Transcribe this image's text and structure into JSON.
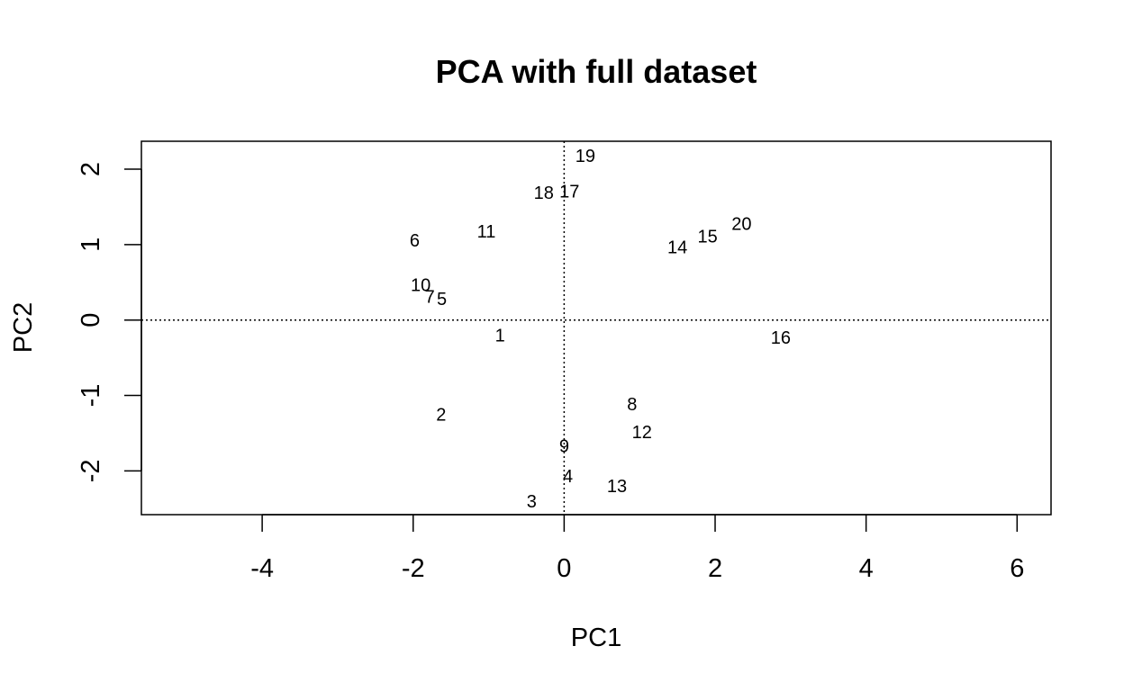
{
  "chart_data": {
    "type": "scatter",
    "title": "PCA with full dataset",
    "xlabel": "PC1",
    "ylabel": "PC2",
    "xlim": [
      -5.6,
      6.45
    ],
    "ylim": [
      -2.58,
      2.37
    ],
    "x_ticks": [
      -4,
      -2,
      0,
      2,
      4,
      6
    ],
    "y_ticks": [
      -2,
      -1,
      0,
      1,
      2
    ],
    "x_tick_labels": [
      "-4",
      "-2",
      "0",
      "2",
      "4",
      "6"
    ],
    "y_tick_labels": [
      "-2",
      "-1",
      "0",
      "1",
      "2"
    ],
    "reference_lines": {
      "x": 0,
      "y": 0,
      "style": "dotted"
    },
    "grid": false,
    "point_style": "text-labels",
    "points": [
      {
        "label": "1",
        "x": -0.85,
        "y": -0.2
      },
      {
        "label": "2",
        "x": -1.63,
        "y": -1.25
      },
      {
        "label": "3",
        "x": -0.43,
        "y": -2.4
      },
      {
        "label": "4",
        "x": 0.05,
        "y": -2.07
      },
      {
        "label": "5",
        "x": -1.62,
        "y": 0.28
      },
      {
        "label": "6",
        "x": -1.98,
        "y": 1.06
      },
      {
        "label": "7",
        "x": -1.78,
        "y": 0.31
      },
      {
        "label": "8",
        "x": 0.9,
        "y": -1.11
      },
      {
        "label": "9",
        "x": 0.0,
        "y": -1.67
      },
      {
        "label": "10",
        "x": -1.9,
        "y": 0.47
      },
      {
        "label": "11",
        "x": -1.03,
        "y": 1.18
      },
      {
        "label": "12",
        "x": 1.03,
        "y": -1.48
      },
      {
        "label": "13",
        "x": 0.7,
        "y": -2.2
      },
      {
        "label": "14",
        "x": 1.5,
        "y": 0.97
      },
      {
        "label": "15",
        "x": 1.9,
        "y": 1.11
      },
      {
        "label": "16",
        "x": 2.87,
        "y": -0.23
      },
      {
        "label": "17",
        "x": 0.07,
        "y": 1.71
      },
      {
        "label": "18",
        "x": -0.27,
        "y": 1.69
      },
      {
        "label": "19",
        "x": 0.28,
        "y": 2.18
      },
      {
        "label": "20",
        "x": 2.35,
        "y": 1.28
      }
    ]
  }
}
